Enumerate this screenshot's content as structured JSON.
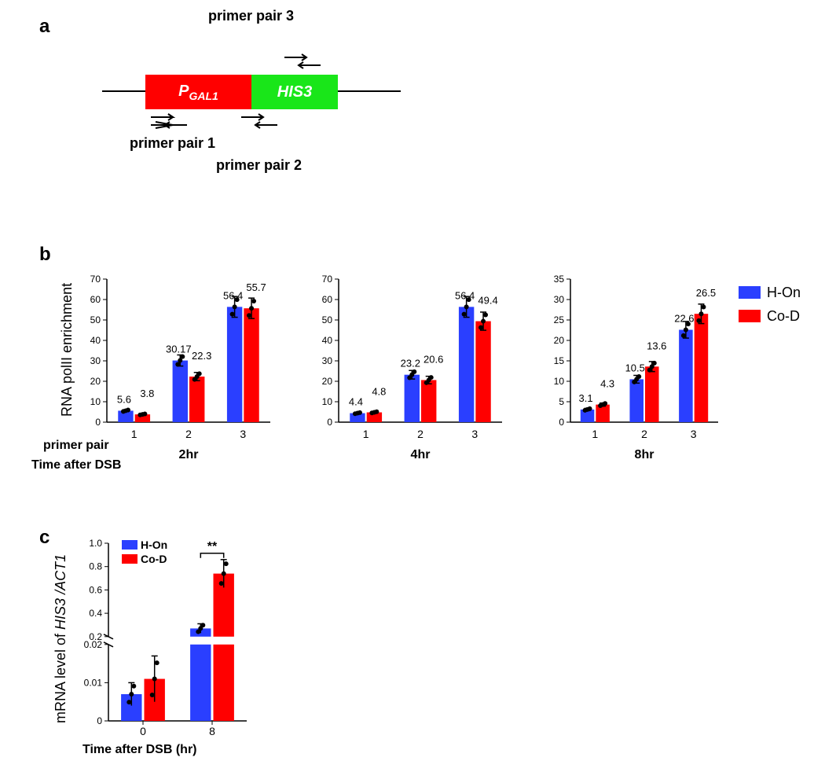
{
  "colors": {
    "blue": "#2a3fff",
    "red": "#ff0000",
    "green": "#19e619",
    "black": "#000000",
    "white": "#ffffff"
  },
  "panel_letters": {
    "a": "a",
    "b": "b",
    "c": "c"
  },
  "legend_b": {
    "h_on": "H-On",
    "co_d": "Co-D"
  },
  "legend_c": {
    "h_on": "H-On",
    "co_d": "Co-D"
  },
  "panelA": {
    "box1_label": "P",
    "box1_sub": "GAL1",
    "box2_label": "HIS3",
    "primer1": "primer pair 1",
    "primer2": "primer pair 2",
    "primer3": "primer pair 3"
  },
  "panelB": {
    "y_axis": "RNA polII enrichment",
    "row_primer": "primer pair",
    "row_time": "Time after DSB",
    "time_labels": [
      "2hr",
      "4hr",
      "8hr"
    ],
    "primer_cats": [
      "1",
      "2",
      "3"
    ],
    "charts": [
      {
        "ymax": 70,
        "ytick": 10,
        "groups": [
          {
            "h": 5.6,
            "c": 3.8,
            "hl": "5.6",
            "cl": "3.8"
          },
          {
            "h": 30.17,
            "c": 22.3,
            "hl": "30.17",
            "cl": "22.3"
          },
          {
            "h": 56.4,
            "c": 55.7,
            "hl": "56.4",
            "cl": "55.7"
          }
        ]
      },
      {
        "ymax": 70,
        "ytick": 10,
        "groups": [
          {
            "h": 4.4,
            "c": 4.8,
            "hl": "4.4",
            "cl": "4.8"
          },
          {
            "h": 23.2,
            "c": 20.6,
            "hl": "23.2",
            "cl": "20.6"
          },
          {
            "h": 56.4,
            "c": 49.4,
            "hl": "56.4",
            "cl": "49.4"
          }
        ]
      },
      {
        "ymax": 35,
        "ytick": 5,
        "groups": [
          {
            "h": 3.1,
            "c": 4.3,
            "hl": "3.1",
            "cl": "4.3"
          },
          {
            "h": 10.5,
            "c": 13.6,
            "hl": "10.5",
            "cl": "13.6"
          },
          {
            "h": 22.6,
            "c": 26.5,
            "hl": "22.6",
            "cl": "26.5"
          }
        ]
      }
    ]
  },
  "panelC": {
    "y_axis_top": "mRNA level of ",
    "y_axis_italic": "HIS3 /ACT1",
    "x_axis": "Time after DSB (hr)",
    "sig": "**",
    "lower": {
      "ymin": 0,
      "ymax": 0.02,
      "ticks": [
        0,
        0.01,
        0.02
      ]
    },
    "upper": {
      "ymin": 0.2,
      "ymax": 1.0,
      "ticks": [
        0.2,
        0.4,
        0.6,
        0.8,
        1.0
      ]
    },
    "cats": [
      "0",
      "8"
    ],
    "bars": [
      {
        "h": 0.007,
        "c": 0.011,
        "h_err": 0.003,
        "c_err": 0.006
      },
      {
        "h": 0.27,
        "c": 0.74,
        "h_err": 0.04,
        "c_err": 0.12
      }
    ]
  }
}
